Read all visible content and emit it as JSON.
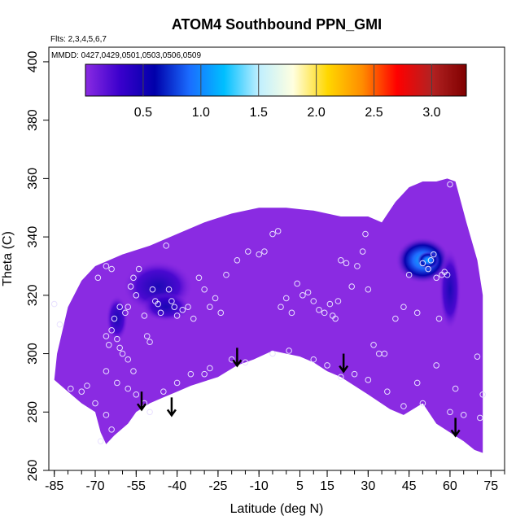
{
  "chart_data": {
    "type": "heatmap",
    "title": "ATOM4 Southbound PPN_GMI",
    "flights_note": "Flts: 2,3,4,5,6,7",
    "dates_note": "MMDD: 0427,0429,0501,0503,0506,0509",
    "xlabel": "Latitude (deg N)",
    "ylabel": "Theta (C)",
    "xlim": [
      -87,
      80
    ],
    "ylim": [
      260,
      405
    ],
    "xticks": [
      -85,
      -70,
      -55,
      -40,
      -25,
      -10,
      5,
      15,
      30,
      45,
      60,
      75
    ],
    "xtick_labels": [
      "-85",
      "-70",
      "-55",
      "-40",
      "-25",
      "-10",
      "5",
      "15",
      "30",
      "45",
      "60",
      "75"
    ],
    "xminor_step": 5,
    "yticks": [
      260,
      280,
      300,
      320,
      340,
      360,
      380,
      400
    ],
    "ytick_labels": [
      "260",
      "280",
      "300",
      "320",
      "340",
      "360",
      "380",
      "400"
    ],
    "colorbar": {
      "min": 0,
      "max": 3.3,
      "ticks": [
        0.5,
        1.0,
        1.5,
        2.0,
        2.5,
        3.0
      ],
      "tick_labels": [
        "0.5",
        "1.0",
        "1.5",
        "2.0",
        "2.5",
        "3.0"
      ],
      "colors": [
        "#8a2be2",
        "#3a00cc",
        "#0000aa",
        "#1a6cff",
        "#00bfff",
        "#bfefff",
        "#ffffe0",
        "#ffd700",
        "#ff8c00",
        "#ff0000",
        "#b22222",
        "#800000"
      ]
    },
    "fill_color": "#8a2be2",
    "lower_boundary": [
      [
        -85,
        291
      ],
      [
        -80,
        287
      ],
      [
        -75,
        283
      ],
      [
        -70,
        280
      ],
      [
        -68,
        273
      ],
      [
        -66,
        269
      ],
      [
        -63,
        272
      ],
      [
        -58,
        276
      ],
      [
        -55,
        280
      ],
      [
        -50,
        283
      ],
      [
        -45,
        285
      ],
      [
        -40,
        287
      ],
      [
        -35,
        289
      ],
      [
        -25,
        292
      ],
      [
        -18,
        296
      ],
      [
        -12,
        298
      ],
      [
        -5,
        301
      ],
      [
        5,
        299
      ],
      [
        10,
        297
      ],
      [
        15,
        294
      ],
      [
        20,
        292
      ],
      [
        30,
        286
      ],
      [
        38,
        281
      ],
      [
        43,
        279
      ],
      [
        50,
        283
      ],
      [
        55,
        276
      ],
      [
        60,
        273
      ],
      [
        65,
        270
      ],
      [
        69,
        267
      ],
      [
        72,
        266
      ]
    ],
    "upper_boundary": [
      [
        -85,
        291
      ],
      [
        -84,
        300
      ],
      [
        -80,
        316
      ],
      [
        -75,
        325
      ],
      [
        -70,
        330
      ],
      [
        -60,
        334
      ],
      [
        -50,
        337
      ],
      [
        -40,
        341
      ],
      [
        -30,
        345
      ],
      [
        -20,
        348
      ],
      [
        -10,
        350
      ],
      [
        0,
        350
      ],
      [
        10,
        349
      ],
      [
        20,
        347
      ],
      [
        30,
        347
      ],
      [
        35,
        345
      ],
      [
        40,
        352
      ],
      [
        45,
        357
      ],
      [
        50,
        359
      ],
      [
        55,
        359
      ],
      [
        59,
        360
      ],
      [
        62,
        359
      ],
      [
        66,
        345
      ],
      [
        70,
        332
      ],
      [
        72,
        320
      ],
      [
        72,
        266
      ]
    ],
    "high_regions": [
      {
        "center": [
          -47,
          323
        ],
        "rx": 13,
        "ry": 9,
        "value": 0.4
      },
      {
        "center": [
          -44,
          316
        ],
        "rx": 9,
        "ry": 5,
        "value": 0.25
      },
      {
        "center": [
          50,
          332
        ],
        "rx": 10,
        "ry": 8,
        "value": 0.7
      },
      {
        "center": [
          52,
          332
        ],
        "rx": 4,
        "ry": 3,
        "value": 1.1
      },
      {
        "center": [
          60,
          322
        ],
        "rx": 4,
        "ry": 14,
        "value": 0.4
      },
      {
        "center": [
          -62,
          312
        ],
        "rx": 4,
        "ry": 8,
        "value": 0.25
      }
    ],
    "observations": [
      [
        -85,
        317
      ],
      [
        -83,
        310
      ],
      [
        -79,
        288
      ],
      [
        -75,
        287
      ],
      [
        -73,
        289
      ],
      [
        -70,
        283
      ],
      [
        -68,
        270
      ],
      [
        -66,
        279
      ],
      [
        -64,
        274
      ],
      [
        -69,
        326
      ],
      [
        -66,
        330
      ],
      [
        -64,
        329
      ],
      [
        -61,
        316
      ],
      [
        -60,
        300
      ],
      [
        -58,
        298
      ],
      [
        -56,
        294
      ],
      [
        -55,
        286
      ],
      [
        -66,
        306
      ],
      [
        -65,
        303
      ],
      [
        -64,
        308
      ],
      [
        -63,
        312
      ],
      [
        -62,
        305
      ],
      [
        -61,
        302
      ],
      [
        -59,
        314
      ],
      [
        -58,
        316
      ],
      [
        -57,
        323
      ],
      [
        -56,
        326
      ],
      [
        -55,
        320
      ],
      [
        -54,
        329
      ],
      [
        -52,
        313
      ],
      [
        -51,
        306
      ],
      [
        -50,
        304
      ],
      [
        -49,
        322
      ],
      [
        -48,
        318
      ],
      [
        -47,
        317
      ],
      [
        -46,
        314
      ],
      [
        -44,
        337
      ],
      [
        -43,
        322
      ],
      [
        -42,
        318
      ],
      [
        -41,
        316
      ],
      [
        -40,
        313
      ],
      [
        -38,
        315
      ],
      [
        -36,
        316
      ],
      [
        -34,
        312
      ],
      [
        -32,
        326
      ],
      [
        -30,
        322
      ],
      [
        -28,
        316
      ],
      [
        -26,
        319
      ],
      [
        -24,
        314
      ],
      [
        -22,
        327
      ],
      [
        -18,
        332
      ],
      [
        -14,
        335
      ],
      [
        -10,
        334
      ],
      [
        -8,
        335
      ],
      [
        -5,
        341
      ],
      [
        -3,
        342
      ],
      [
        -2,
        316
      ],
      [
        0,
        319
      ],
      [
        2,
        314
      ],
      [
        4,
        324
      ],
      [
        6,
        320
      ],
      [
        8,
        321
      ],
      [
        10,
        318
      ],
      [
        12,
        315
      ],
      [
        14,
        314
      ],
      [
        16,
        317
      ],
      [
        17,
        313
      ],
      [
        18,
        312
      ],
      [
        19,
        318
      ],
      [
        20,
        332
      ],
      [
        22,
        331
      ],
      [
        24,
        323
      ],
      [
        26,
        330
      ],
      [
        28,
        335
      ],
      [
        29,
        341
      ],
      [
        30,
        322
      ],
      [
        32,
        303
      ],
      [
        34,
        300
      ],
      [
        36,
        300
      ],
      [
        40,
        312
      ],
      [
        43,
        316
      ],
      [
        45,
        327
      ],
      [
        48,
        314
      ],
      [
        50,
        331
      ],
      [
        52,
        329
      ],
      [
        53,
        332
      ],
      [
        54,
        334
      ],
      [
        55,
        326
      ],
      [
        56,
        312
      ],
      [
        57,
        327
      ],
      [
        58,
        328
      ],
      [
        59,
        327
      ],
      [
        60,
        358
      ],
      [
        -30,
        293
      ],
      [
        -15,
        297
      ],
      [
        -5,
        300
      ],
      [
        1,
        301
      ],
      [
        10,
        298
      ],
      [
        20,
        292
      ],
      [
        30,
        291
      ],
      [
        37,
        287
      ],
      [
        43,
        282
      ],
      [
        50,
        283
      ],
      [
        55,
        296
      ],
      [
        60,
        280
      ],
      [
        65,
        279
      ],
      [
        70,
        299
      ],
      [
        71,
        278
      ],
      [
        72,
        286
      ],
      [
        -45,
        287
      ],
      [
        -40,
        290
      ],
      [
        -50,
        280
      ],
      [
        -52,
        283
      ],
      [
        -35,
        293
      ],
      [
        -28,
        295
      ],
      [
        -20,
        298
      ],
      [
        -58,
        288
      ],
      [
        -62,
        290
      ],
      [
        -66,
        294
      ],
      [
        15,
        296
      ],
      [
        25,
        293
      ],
      [
        48,
        290
      ],
      [
        62,
        288
      ]
    ],
    "arrows": [
      [
        -53,
        287
      ],
      [
        -42,
        285
      ],
      [
        -18,
        302
      ],
      [
        21,
        300
      ],
      [
        62,
        278
      ]
    ]
  }
}
